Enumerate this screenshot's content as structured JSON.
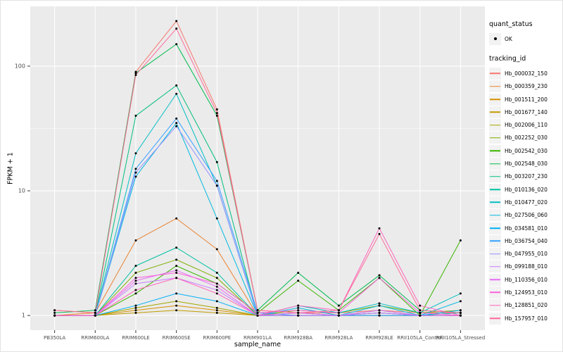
{
  "chart_data": {
    "type": "line",
    "title": "",
    "xlabel": "sample_name",
    "ylabel": "FPKM + 1",
    "y_scale": "log10",
    "ylim": [
      1,
      230
    ],
    "y_ticks": [
      1,
      10,
      100
    ],
    "y_minor_ticks": [
      3.1623,
      31.623
    ],
    "grid": "major-and-minor-white-on-gray",
    "legend_position": "right",
    "panel_background": "#EBEBEB",
    "gridline_color": "#FFFFFF",
    "point_color": "#000000",
    "point_marker": "filled-circle",
    "categories": [
      "PB350LA",
      "RRIM600LA",
      "RRIM600LE",
      "RRIM600SE",
      "RRIM600PE",
      "RRIM901LA",
      "RRIM928BA",
      "RRIM928LA",
      "RRIM928LE",
      "RRII105LA_Control",
      "RRII105LA_Stressed"
    ],
    "series": [
      {
        "name": "Hb_000032_150",
        "color": "#F8766D",
        "values": [
          1.1,
          1.05,
          90,
          230,
          45,
          1.1,
          1.05,
          1.05,
          1.1,
          1.05,
          1.05
        ]
      },
      {
        "name": "Hb_000359_230",
        "color": "#EA8331",
        "values": [
          1,
          1.05,
          4,
          6,
          3.4,
          1,
          1.05,
          1,
          1.05,
          1,
          1
        ]
      },
      {
        "name": "Hb_001511_200",
        "color": "#D89000",
        "values": [
          1,
          1,
          1.1,
          1.2,
          1.1,
          1,
          1,
          1,
          1,
          1,
          1
        ]
      },
      {
        "name": "Hb_001677_140",
        "color": "#C09B00",
        "values": [
          1,
          1,
          1.05,
          1.1,
          1.05,
          1,
          1,
          1,
          1,
          1,
          1
        ]
      },
      {
        "name": "Hb_002006_110",
        "color": "#A3A500",
        "values": [
          1,
          1,
          1.15,
          1.3,
          1.15,
          1,
          1,
          1,
          1.05,
          1,
          1
        ]
      },
      {
        "name": "Hb_002252_030",
        "color": "#7CAE00",
        "values": [
          1,
          1,
          2.2,
          2.8,
          2,
          1,
          1.1,
          1.05,
          1.2,
          1.05,
          1.1
        ]
      },
      {
        "name": "Hb_002542_030",
        "color": "#39B600",
        "values": [
          1,
          1,
          1.5,
          2.5,
          1.8,
          1.05,
          1.9,
          1.1,
          2,
          1,
          4
        ]
      },
      {
        "name": "Hb_002548_030",
        "color": "#00BB4E",
        "values": [
          1.05,
          1.1,
          88,
          150,
          40,
          1.1,
          2.2,
          1.2,
          2.1,
          1.1,
          1.05
        ]
      },
      {
        "name": "Hb_003207_230",
        "color": "#00BF7D",
        "values": [
          1,
          1,
          40,
          70,
          17,
          1,
          1,
          1,
          1.05,
          1,
          1
        ]
      },
      {
        "name": "Hb_010136_020",
        "color": "#00C1A3",
        "values": [
          1,
          1,
          2.5,
          3.5,
          2.2,
          1,
          1.05,
          1,
          1.1,
          1,
          1.05
        ]
      },
      {
        "name": "Hb_010477_020",
        "color": "#00BFC4",
        "values": [
          1,
          1,
          20,
          60,
          11,
          1,
          1.2,
          1.05,
          1.25,
          1.05,
          1.5
        ]
      },
      {
        "name": "Hb_027506_060",
        "color": "#00BAE0",
        "values": [
          1,
          1,
          13,
          35,
          6,
          1,
          1.15,
          1,
          1.2,
          1,
          1.3
        ]
      },
      {
        "name": "Hb_034581_010",
        "color": "#00B0F6",
        "values": [
          1,
          1,
          1.2,
          1.5,
          1.3,
          1,
          1,
          1,
          1,
          1,
          1.1
        ]
      },
      {
        "name": "Hb_036754_040",
        "color": "#35A2FF",
        "values": [
          1,
          1,
          15,
          38,
          12,
          1.05,
          1,
          1,
          1,
          1,
          1
        ]
      },
      {
        "name": "Hb_047955_010",
        "color": "#9590FF",
        "values": [
          1,
          1,
          14,
          33,
          11,
          1,
          1,
          1,
          1.05,
          1,
          1
        ]
      },
      {
        "name": "Hb_099188_010",
        "color": "#C77CFF",
        "values": [
          1,
          1,
          1.8,
          2,
          1.6,
          1,
          1,
          1,
          1.05,
          1,
          1
        ]
      },
      {
        "name": "Hb_110356_010",
        "color": "#E76BF3",
        "values": [
          1,
          1,
          1.9,
          2.3,
          1.7,
          1,
          1.05,
          1,
          1.1,
          1,
          1
        ]
      },
      {
        "name": "Hb_124953_010",
        "color": "#FA62DB",
        "values": [
          1,
          1,
          2,
          2.2,
          1.8,
          1.05,
          1.1,
          1.05,
          2,
          1.05,
          1
        ]
      },
      {
        "name": "Hb_128851_020",
        "color": "#FF62BC",
        "values": [
          1,
          1,
          1.6,
          2,
          1.5,
          1,
          1.2,
          1.1,
          5,
          1.2,
          1
        ]
      },
      {
        "name": "Hb_157957_010",
        "color": "#FF6A98",
        "values": [
          1.1,
          1.05,
          85,
          200,
          42,
          1.1,
          1.05,
          1.1,
          4.5,
          1.1,
          1.05
        ]
      }
    ]
  },
  "legend": {
    "quant_status": {
      "title": "quant_status",
      "items": [
        "OK"
      ]
    },
    "tracking_id": {
      "title": "tracking_id"
    }
  }
}
